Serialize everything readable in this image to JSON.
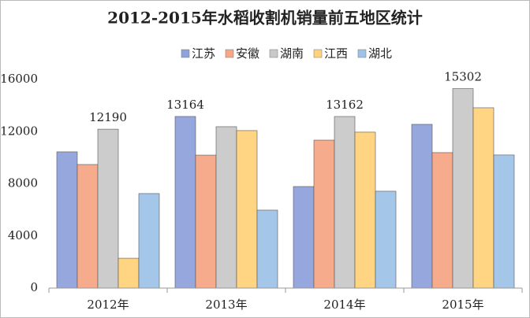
{
  "chart_data": {
    "type": "bar",
    "title": "2012-2015年水稻收割机销量前五地区统计",
    "categories": [
      "2012年",
      "2013年",
      "2014年",
      "2015年"
    ],
    "series": [
      {
        "name": "江苏",
        "color": "#8fa2da",
        "values": [
          10450,
          13164,
          7790,
          12560
        ],
        "value_labels": [
          null,
          "13164",
          null,
          null
        ]
      },
      {
        "name": "安徽",
        "color": "#f6a886",
        "values": [
          9480,
          10200,
          11350,
          10390
        ],
        "value_labels": [
          null,
          null,
          null,
          null
        ]
      },
      {
        "name": "湖南",
        "color": "#c9c9c9",
        "values": [
          12190,
          12380,
          13162,
          15302
        ],
        "value_labels": [
          "12190",
          null,
          "13162",
          "15302"
        ]
      },
      {
        "name": "江西",
        "color": "#ffd27c",
        "values": [
          2290,
          12080,
          11960,
          13830
        ],
        "value_labels": [
          null,
          null,
          null,
          null
        ]
      },
      {
        "name": "湖北",
        "color": "#9fc3e7",
        "values": [
          7250,
          5980,
          7430,
          10210
        ],
        "value_labels": [
          null,
          null,
          null,
          null
        ]
      }
    ],
    "ylim": [
      0,
      16000
    ],
    "yticks": [
      0,
      4000,
      8000,
      12000,
      16000
    ],
    "grid": false,
    "legend": "top"
  }
}
